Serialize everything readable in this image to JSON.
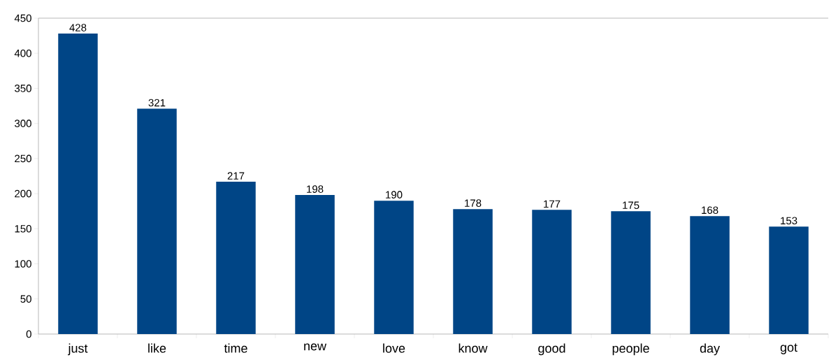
{
  "chart_data": {
    "type": "bar",
    "categories": [
      "just",
      "like",
      "time",
      "new",
      "love",
      "know",
      "good",
      "people",
      "day",
      "got"
    ],
    "values": [
      428,
      321,
      217,
      198,
      190,
      178,
      177,
      175,
      168,
      153
    ],
    "color": "#004586",
    "ylim": [
      0,
      450
    ],
    "yticks": [
      0,
      50,
      100,
      150,
      200,
      250,
      300,
      350,
      400,
      450
    ],
    "data_labels": true
  }
}
